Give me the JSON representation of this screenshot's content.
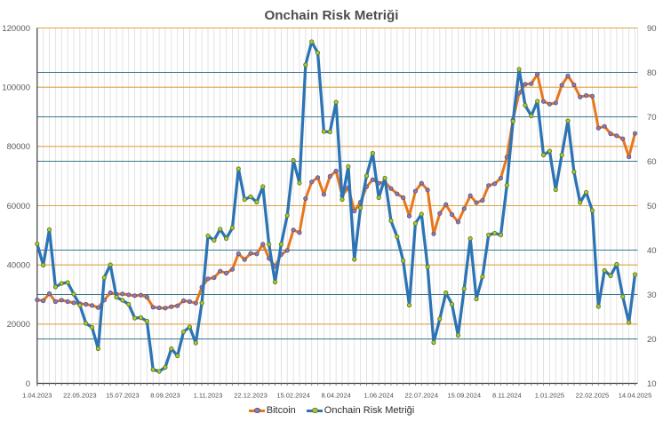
{
  "title": "Onchain Risk Metriği",
  "legend": {
    "items": [
      {
        "label": "Bitcoin",
        "line_color": "#E8761B",
        "marker_fill": "#8C7BAC",
        "marker_stroke": "#63557F"
      },
      {
        "label": "Onchain Risk Metriği",
        "line_color": "#2D74B5",
        "marker_fill": "#A8C832",
        "marker_stroke": "#5E7A1F"
      }
    ]
  },
  "chart_data": {
    "type": "line",
    "title": "Onchain Risk Metriği",
    "dual_axis": true,
    "categories": [
      "1.04.2023",
      "8.04.2023",
      "15.04.2023",
      "22.04.2023",
      "1.05.2023",
      "8.05.2023",
      "15.05.2023",
      "22.05.2023",
      "1.06.2023",
      "8.06.2023",
      "15.06.2023",
      "22.06.2023",
      "1.07.2023",
      "8.07.2023",
      "15.07.2023",
      "22.07.2023",
      "1.08.2023",
      "8.08.2023",
      "15.08.2023",
      "22.08.2023",
      "1.09.2023",
      "8.09.2023",
      "15.09.2023",
      "22.09.2023",
      "1.10.2023",
      "8.10.2023",
      "15.10.2023",
      "22.10.2023",
      "1.11.2023",
      "8.11.2023",
      "15.11.2023",
      "22.11.2023",
      "1.12.2023",
      "8.12.2023",
      "15.12.2023",
      "22.12.2023",
      "1.01.2024",
      "8.01.2024",
      "15.01.2024",
      "22.01.2024",
      "1.02.2024",
      "8.02.2024",
      "15.02.2024",
      "22.02.2024",
      "1.03.2024",
      "8.03.2024",
      "15.03.2024",
      "22.03.2024",
      "1.04.2024",
      "8.04.2024",
      "15.04.2024",
      "22.04.2024",
      "1.05.2024",
      "8.05.2024",
      "15.05.2024",
      "22.05.2024",
      "1.06.2024",
      "8.06.2024",
      "15.06.2024",
      "22.06.2024",
      "1.07.2024",
      "8.07.2024",
      "15.07.2024",
      "22.07.2024",
      "1.08.2024",
      "8.08.2024",
      "15.08.2024",
      "22.08.2024",
      "1.09.2024",
      "8.09.2024",
      "15.09.2024",
      "22.09.2024",
      "1.10.2024",
      "8.10.2024",
      "15.10.2024",
      "22.10.2024",
      "1.11.2024",
      "8.11.2024",
      "15.11.2024",
      "22.11.2024",
      "1.12.2024",
      "8.12.2024",
      "15.12.2024",
      "22.12.2024",
      "1.01.2025",
      "8.01.2025",
      "15.01.2025",
      "22.01.2025",
      "1.02.2025",
      "8.02.2025",
      "15.02.2025",
      "22.02.2025",
      "1.03.2025",
      "8.03.2025",
      "15.03.2025",
      "22.03.2025",
      "1.04.2025",
      "8.04.2025",
      "14.04.2025"
    ],
    "x_tick_labels": [
      "1.04.2023",
      "22.05.2023",
      "15.07.2023",
      "8.09.2023",
      "1.11.2023",
      "22.12.2023",
      "15.02.2024",
      "8.04.2024",
      "1.06.2024",
      "22.07.2024",
      "15.09.2024",
      "8.11.2024",
      "1.01.2025",
      "22.02.2025",
      "14.04.2025"
    ],
    "x_label_every": 7,
    "series": [
      {
        "name": "Bitcoin",
        "axis": "left",
        "color": "#E8761B",
        "marker": {
          "shape": "circle",
          "fill": "#8C7BAC",
          "stroke": "#63557F"
        },
        "values": [
          28200,
          27900,
          30300,
          27600,
          28100,
          27600,
          27200,
          26900,
          26700,
          26300,
          25600,
          28100,
          30600,
          30100,
          30200,
          29900,
          29600,
          29800,
          29100,
          25700,
          25500,
          25400,
          25900,
          26200,
          27900,
          27600,
          27100,
          32500,
          35300,
          35700,
          37900,
          37200,
          38500,
          43800,
          41800,
          43900,
          43700,
          47000,
          42200,
          39500,
          43500,
          44900,
          51800,
          50900,
          62400,
          68000,
          69500,
          63800,
          69900,
          71700,
          63400,
          66100,
          58200,
          61200,
          66400,
          68800,
          67600,
          68000,
          65800,
          64000,
          62700,
          56500,
          64900,
          67600,
          65300,
          50500,
          57400,
          60400,
          57000,
          54500,
          59000,
          63400,
          61000,
          61800,
          66800,
          67400,
          69300,
          76400,
          89000,
          98000,
          101000,
          101200,
          104400,
          95200,
          94300,
          94700,
          100700,
          103800,
          100800,
          96700,
          97200,
          97000,
          86200,
          86800,
          84300,
          83600,
          82600,
          76500,
          84400
        ]
      },
      {
        "name": "Onchain Risk Metriği",
        "axis": "right",
        "color": "#2D74B5",
        "marker": {
          "shape": "circle",
          "fill": "#A8C832",
          "stroke": "#5E7A1F"
        },
        "values": [
          41.4,
          36.6,
          44.6,
          31.7,
          32.5,
          32.7,
          30.1,
          27.6,
          23.5,
          22.6,
          17.8,
          33.8,
          36.7,
          29.4,
          28.7,
          27.8,
          24.7,
          24.8,
          24.0,
          13.1,
          12.7,
          13.6,
          17.8,
          16.2,
          21.6,
          22.7,
          19.1,
          28.1,
          43.2,
          42.2,
          44.7,
          42.6,
          45.0,
          58.3,
          51.4,
          52.0,
          50.8,
          54.3,
          41.3,
          32.8,
          41.3,
          47.8,
          60.2,
          55.1,
          81.7,
          86.9,
          84.4,
          66.7,
          66.6,
          73.3,
          51.4,
          58.8,
          37.9,
          49.5,
          56.7,
          61.8,
          51.8,
          56.2,
          46.6,
          43.0,
          37.6,
          27.6,
          46.0,
          48.1,
          36.2,
          19.2,
          24.5,
          30.4,
          27.8,
          20.8,
          31.3,
          42.6,
          29.0,
          34.0,
          43.4,
          43.8,
          43.4,
          54.6,
          69.0,
          80.7,
          72.6,
          70.2,
          73.5,
          61.4,
          62.3,
          53.6,
          61.4,
          69.1,
          57.6,
          50.7,
          53.0,
          48.9,
          27.3,
          35.4,
          34.2,
          36.8,
          29.5,
          23.7,
          34.5
        ]
      }
    ],
    "axes": {
      "left": {
        "min": 0,
        "max": 120000,
        "step": 20000,
        "grid_color": "#DFA445",
        "tick_labels": [
          "0",
          "20000",
          "40000",
          "60000",
          "80000",
          "100000",
          "120000"
        ]
      },
      "right": {
        "min": 10,
        "max": 90,
        "step": 10,
        "grid_color": "#39768C",
        "tick_labels": [
          "10",
          "20",
          "30",
          "40",
          "50",
          "60",
          "70",
          "80",
          "90"
        ]
      },
      "x": {
        "grid_color": "#DEDEDE"
      }
    },
    "legend_position": "bottom",
    "grid": true
  }
}
